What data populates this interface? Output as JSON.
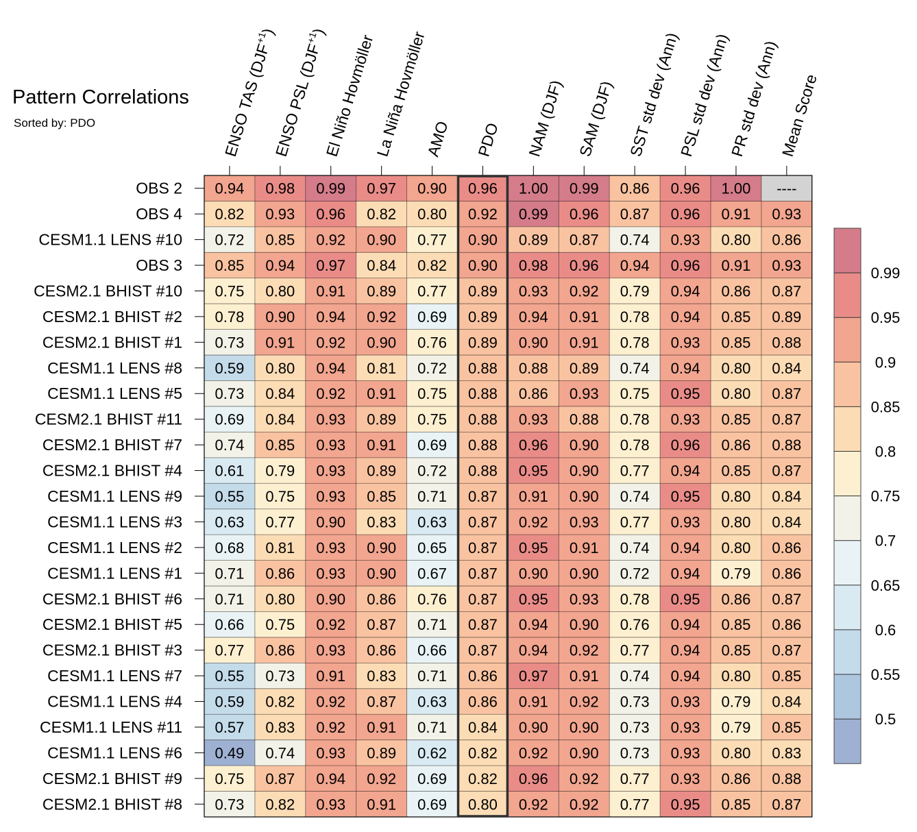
{
  "chart_data": {
    "type": "heatmap",
    "title": "Pattern Correlations",
    "subtitle": "Sorted by: PDO",
    "columns": [
      {
        "text": "ENSO TAS (DJF",
        "sup": "+1",
        "close": ")"
      },
      {
        "text": "ENSO PSL (DJF",
        "sup": "+1",
        "close": ")"
      },
      {
        "text": "El Niño Hovmöller",
        "sup": "",
        "close": ""
      },
      {
        "text": "La Niña Hovmöller",
        "sup": "",
        "close": ""
      },
      {
        "text": "AMO",
        "sup": "",
        "close": ""
      },
      {
        "text": "PDO",
        "sup": "",
        "close": ""
      },
      {
        "text": "NAM (DJF)",
        "sup": "",
        "close": ""
      },
      {
        "text": "SAM (DJF)",
        "sup": "",
        "close": ""
      },
      {
        "text": "SST std dev (Ann)",
        "sup": "",
        "close": ""
      },
      {
        "text": "PSL std dev (Ann)",
        "sup": "",
        "close": ""
      },
      {
        "text": "PR std dev (Ann)",
        "sup": "",
        "close": ""
      },
      {
        "text": "Mean Score",
        "sup": "",
        "close": ""
      }
    ],
    "highlighted_column": "PDO",
    "missing_text": "----",
    "rows": [
      {
        "label": "OBS 2",
        "values": [
          0.94,
          0.98,
          0.99,
          0.97,
          0.9,
          0.96,
          1.0,
          0.99,
          0.86,
          0.96,
          1.0,
          null
        ]
      },
      {
        "label": "OBS 4",
        "values": [
          0.82,
          0.93,
          0.96,
          0.82,
          0.8,
          0.92,
          0.99,
          0.96,
          0.87,
          0.96,
          0.91,
          0.93
        ]
      },
      {
        "label": "CESM1.1 LENS #10",
        "values": [
          0.72,
          0.85,
          0.92,
          0.9,
          0.77,
          0.9,
          0.89,
          0.87,
          0.74,
          0.93,
          0.8,
          0.86
        ]
      },
      {
        "label": "OBS 3",
        "values": [
          0.85,
          0.94,
          0.97,
          0.84,
          0.82,
          0.9,
          0.98,
          0.96,
          0.94,
          0.96,
          0.91,
          0.93
        ]
      },
      {
        "label": "CESM2.1 BHIST #10",
        "values": [
          0.75,
          0.8,
          0.91,
          0.89,
          0.77,
          0.89,
          0.93,
          0.92,
          0.79,
          0.94,
          0.86,
          0.87
        ]
      },
      {
        "label": "CESM2.1 BHIST #2",
        "values": [
          0.78,
          0.9,
          0.94,
          0.92,
          0.69,
          0.89,
          0.94,
          0.91,
          0.78,
          0.94,
          0.85,
          0.89
        ]
      },
      {
        "label": "CESM2.1 BHIST #1",
        "values": [
          0.73,
          0.91,
          0.92,
          0.9,
          0.76,
          0.89,
          0.9,
          0.91,
          0.78,
          0.93,
          0.85,
          0.88
        ]
      },
      {
        "label": "CESM1.1 LENS #8",
        "values": [
          0.59,
          0.8,
          0.94,
          0.81,
          0.72,
          0.88,
          0.88,
          0.89,
          0.74,
          0.94,
          0.8,
          0.84
        ]
      },
      {
        "label": "CESM1.1 LENS #5",
        "values": [
          0.73,
          0.84,
          0.92,
          0.91,
          0.75,
          0.88,
          0.86,
          0.93,
          0.75,
          0.95,
          0.8,
          0.87
        ]
      },
      {
        "label": "CESM2.1 BHIST #11",
        "values": [
          0.69,
          0.84,
          0.93,
          0.89,
          0.75,
          0.88,
          0.93,
          0.88,
          0.78,
          0.93,
          0.85,
          0.87
        ]
      },
      {
        "label": "CESM2.1 BHIST #7",
        "values": [
          0.74,
          0.85,
          0.93,
          0.91,
          0.69,
          0.88,
          0.96,
          0.9,
          0.78,
          0.96,
          0.86,
          0.88
        ]
      },
      {
        "label": "CESM2.1 BHIST #4",
        "values": [
          0.61,
          0.79,
          0.93,
          0.89,
          0.72,
          0.88,
          0.95,
          0.9,
          0.77,
          0.94,
          0.85,
          0.87
        ]
      },
      {
        "label": "CESM1.1 LENS #9",
        "values": [
          0.55,
          0.75,
          0.93,
          0.85,
          0.71,
          0.87,
          0.91,
          0.9,
          0.74,
          0.95,
          0.8,
          0.84
        ]
      },
      {
        "label": "CESM1.1 LENS #3",
        "values": [
          0.63,
          0.77,
          0.9,
          0.83,
          0.63,
          0.87,
          0.92,
          0.93,
          0.77,
          0.93,
          0.8,
          0.84
        ]
      },
      {
        "label": "CESM1.1 LENS #2",
        "values": [
          0.68,
          0.81,
          0.93,
          0.9,
          0.65,
          0.87,
          0.95,
          0.91,
          0.74,
          0.94,
          0.8,
          0.86
        ]
      },
      {
        "label": "CESM1.1 LENS #1",
        "values": [
          0.71,
          0.86,
          0.93,
          0.9,
          0.67,
          0.87,
          0.9,
          0.9,
          0.72,
          0.94,
          0.79,
          0.86
        ]
      },
      {
        "label": "CESM2.1 BHIST #6",
        "values": [
          0.71,
          0.8,
          0.9,
          0.86,
          0.76,
          0.87,
          0.95,
          0.93,
          0.78,
          0.95,
          0.86,
          0.87
        ]
      },
      {
        "label": "CESM2.1 BHIST #5",
        "values": [
          0.66,
          0.75,
          0.92,
          0.87,
          0.71,
          0.87,
          0.94,
          0.9,
          0.76,
          0.94,
          0.85,
          0.86
        ]
      },
      {
        "label": "CESM2.1 BHIST #3",
        "values": [
          0.77,
          0.86,
          0.93,
          0.86,
          0.66,
          0.87,
          0.94,
          0.92,
          0.77,
          0.94,
          0.85,
          0.87
        ]
      },
      {
        "label": "CESM1.1 LENS #7",
        "values": [
          0.55,
          0.73,
          0.91,
          0.83,
          0.71,
          0.86,
          0.97,
          0.91,
          0.74,
          0.94,
          0.8,
          0.85
        ]
      },
      {
        "label": "CESM1.1 LENS #4",
        "values": [
          0.59,
          0.82,
          0.92,
          0.87,
          0.63,
          0.86,
          0.91,
          0.92,
          0.73,
          0.93,
          0.79,
          0.84
        ]
      },
      {
        "label": "CESM1.1 LENS #11",
        "values": [
          0.57,
          0.83,
          0.92,
          0.91,
          0.71,
          0.84,
          0.9,
          0.9,
          0.73,
          0.93,
          0.79,
          0.85
        ]
      },
      {
        "label": "CESM1.1 LENS #6",
        "values": [
          0.49,
          0.74,
          0.93,
          0.89,
          0.62,
          0.82,
          0.92,
          0.9,
          0.73,
          0.93,
          0.8,
          0.83
        ]
      },
      {
        "label": "CESM2.1 BHIST #9",
        "values": [
          0.75,
          0.87,
          0.94,
          0.92,
          0.69,
          0.82,
          0.96,
          0.92,
          0.77,
          0.93,
          0.86,
          0.88
        ]
      },
      {
        "label": "CESM2.1 BHIST #8",
        "values": [
          0.73,
          0.82,
          0.93,
          0.91,
          0.69,
          0.8,
          0.92,
          0.92,
          0.77,
          0.95,
          0.85,
          0.87
        ]
      }
    ],
    "colorbar": {
      "labels": [
        "0.99",
        "0.95",
        "0.9",
        "0.85",
        "0.8",
        "0.75",
        "0.7",
        "0.65",
        "0.6",
        "0.55",
        "0.5"
      ],
      "thresholds": [
        0.5,
        0.55,
        0.6,
        0.65,
        0.7,
        0.75,
        0.8,
        0.85,
        0.9,
        0.95,
        0.99
      ],
      "colors": [
        "#9fb1d3",
        "#adc7df",
        "#c4dbea",
        "#d9eaf2",
        "#e9f3f5",
        "#f2f2e8",
        "#fdf0d1",
        "#fcdcb5",
        "#f9c3a1",
        "#f2a58f",
        "#e98c88",
        "#d47c8a"
      ],
      "missing_color": "#d3d3d3",
      "highlight_color": "#303030"
    }
  }
}
